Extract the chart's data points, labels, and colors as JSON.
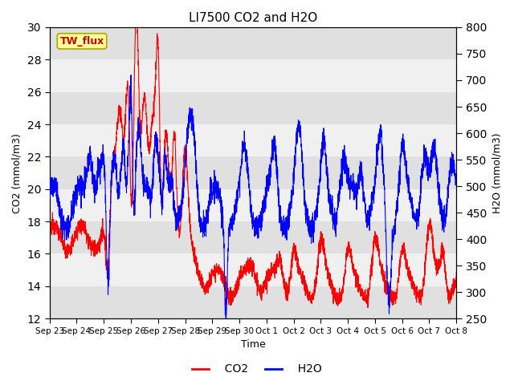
{
  "title": "LI7500 CO2 and H2O",
  "xlabel": "Time",
  "ylabel_left": "CO2 (mmol/m3)",
  "ylabel_right": "H2O (mmol/m3)",
  "co2_ylim": [
    12,
    30
  ],
  "h2o_ylim": [
    250,
    800
  ],
  "co2_color": "#FF0000",
  "h2o_color": "#0000FF",
  "co2_lw": 0.8,
  "h2o_lw": 0.8,
  "site_label": "TW_flux",
  "site_label_color": "#CC0000",
  "site_label_bg": "#FFFF99",
  "site_label_edge": "#AAAA00",
  "bg_colors": [
    "#E0E0E0",
    "#F0F0F0"
  ],
  "x_ticks": [
    "Sep 23",
    "Sep 24",
    "Sep 25",
    "Sep 26",
    "Sep 27",
    "Sep 28",
    "Sep 29",
    "Sep 30",
    "Oct 1",
    "Oct 2",
    "Oct 3",
    "Oct 4",
    "Oct 5",
    "Oct 6",
    "Oct 7",
    "Oct 8"
  ],
  "co2_yticks": [
    12,
    14,
    16,
    18,
    20,
    22,
    24,
    26,
    28,
    30
  ],
  "h2o_yticks": [
    250,
    300,
    350,
    400,
    450,
    500,
    550,
    600,
    650,
    700,
    750,
    800
  ],
  "figsize": [
    6.4,
    4.8
  ],
  "dpi": 100
}
